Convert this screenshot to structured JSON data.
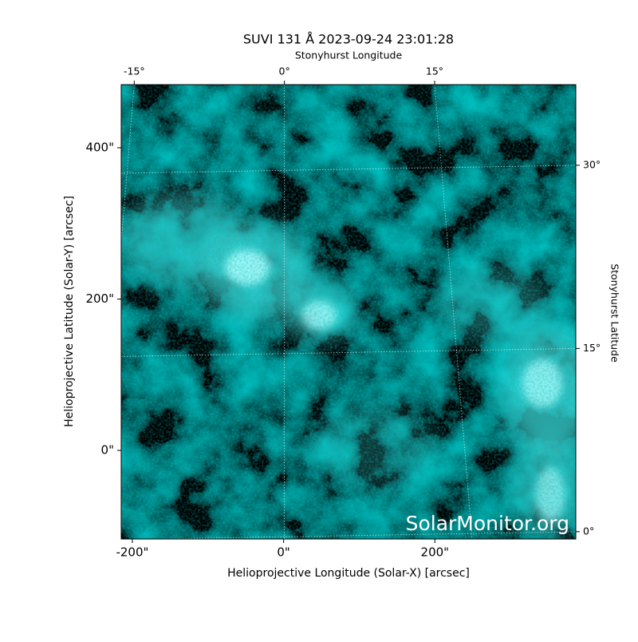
{
  "chart_data": {
    "type": "image",
    "title": "SUVI 131 Å 2023-09-24 23:01:28",
    "xlabel": "Helioprojective Longitude (Solar-X) [arcsec]",
    "ylabel": "Helioprojective Latitude (Solar-Y) [arcsec]",
    "x2label": "Stonyhurst Longitude",
    "y2label": "Stonyhurst Latitude",
    "xlim": [
      -214.7,
      386.3
    ],
    "ylim": [
      -117.1,
      483.4
    ],
    "xticks": [
      {
        "value": -200,
        "label": "-200\""
      },
      {
        "value": 0,
        "label": "0\""
      },
      {
        "value": 200,
        "label": "200\""
      }
    ],
    "yticks": [
      {
        "value": 0,
        "label": "0\""
      },
      {
        "value": 200,
        "label": "200\""
      },
      {
        "value": 400,
        "label": "400\""
      }
    ],
    "x2lim": [
      -16.3,
      29.1
    ],
    "x2ticks": [
      {
        "value": -15,
        "label": "-15°"
      },
      {
        "value": 0,
        "label": "0°"
      },
      {
        "value": 15,
        "label": "15°"
      }
    ],
    "y2lim": [
      -0.6,
      36.6
    ],
    "y2ticks": [
      {
        "value": 0,
        "label": "0°"
      },
      {
        "value": 15,
        "label": "15°"
      },
      {
        "value": 30,
        "label": "30°"
      }
    ],
    "grid": true,
    "watermark": "SolarMonitor.org"
  }
}
